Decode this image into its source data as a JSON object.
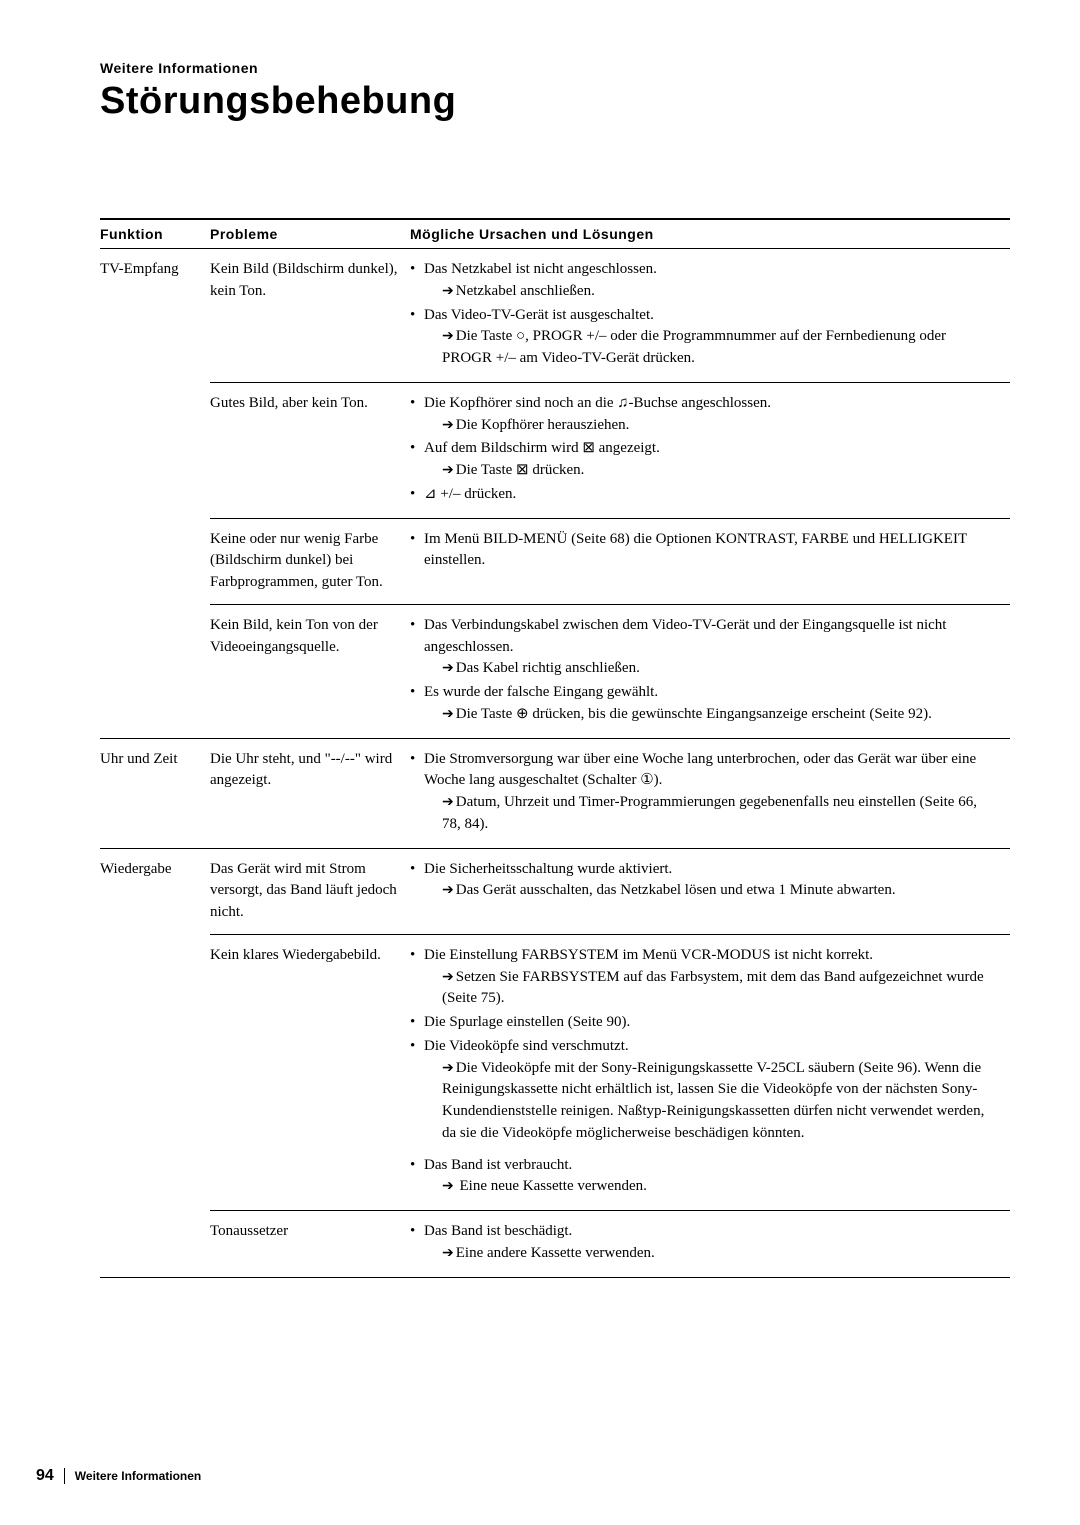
{
  "section_label": "Weitere Informationen",
  "page_title": "Störungsbehebung",
  "headers": {
    "c1": "Funktion",
    "c2": "Probleme",
    "c3": "Mögliche Ursachen und Lösungen"
  },
  "rows": [
    {
      "func": "TV-Empfang",
      "prob": "Kein Bild (Bildschirm dunkel), kein Ton.",
      "sol": [
        {
          "t": "Das Netzkabel ist nicht angeschlossen.",
          "actions": [
            "Netzkabel anschließen."
          ]
        },
        {
          "t": "Das Video-TV-Gerät ist ausgeschaltet.",
          "actions": [
            "Die Taste ○, PROGR +/– oder die Programmnummer auf der Fernbedienung oder PROGR +/– am Video-TV-Gerät drücken."
          ]
        }
      ]
    },
    {
      "func": "",
      "prob": "Gutes Bild, aber kein Ton.",
      "sol": [
        {
          "t": "Die Kopfhörer sind noch an die ♫-Buchse angeschlossen.",
          "actions": [
            "Die Kopfhörer herausziehen."
          ]
        },
        {
          "t": "Auf dem Bildschirm wird ⊠ angezeigt.",
          "actions": [
            "Die Taste ⊠ drücken."
          ]
        },
        {
          "t": "⊿ +/– drücken."
        }
      ]
    },
    {
      "func": "",
      "prob": "Keine oder nur wenig Farbe (Bildschirm dunkel) bei Farbprogrammen, guter Ton.",
      "sol": [
        {
          "t": "Im Menü BILD-MENÜ (Seite 68) die Optionen KONTRAST, FARBE und HELLIGKEIT einstellen."
        }
      ]
    },
    {
      "func": "",
      "func_border": true,
      "prob": "Kein Bild, kein Ton von der Videoeingangsquelle.",
      "sol": [
        {
          "t": "Das Verbindungskabel zwischen dem Video-TV-Gerät und der Eingangsquelle ist nicht angeschlossen.",
          "actions": [
            "Das Kabel richtig anschließen."
          ]
        },
        {
          "t": "Es wurde der falsche Eingang gewählt.",
          "actions": [
            "Die Taste ⊕ drücken, bis die gewünschte Eingangsanzeige erscheint (Seite 92)."
          ]
        }
      ]
    },
    {
      "func": "Uhr und Zeit",
      "func_border": true,
      "prob": "Die Uhr steht, und \"--/--\" wird angezeigt.",
      "sol": [
        {
          "t": "Die Stromversorgung war über eine Woche lang unterbrochen, oder das Gerät war über eine Woche lang ausgeschaltet (Schalter ①).",
          "actions": [
            "Datum, Uhrzeit und Timer-Programmierungen gegebenenfalls neu einstellen (Seite 66, 78, 84)."
          ]
        }
      ]
    },
    {
      "func": "Wiedergabe",
      "prob": "Das Gerät wird mit Strom versorgt, das Band läuft jedoch nicht.",
      "sol": [
        {
          "t": "Die Sicherheitsschaltung wurde aktiviert.",
          "actions": [
            "Das Gerät ausschalten, das Netzkabel lösen und etwa 1 Minute abwarten."
          ]
        }
      ]
    },
    {
      "func": "",
      "prob": "Kein klares Wiedergabebild.",
      "sol": [
        {
          "t": "Die Einstellung FARBSYSTEM im Menü VCR-MODUS ist nicht korrekt.",
          "actions": [
            "Setzen Sie FARBSYSTEM auf das Farbsystem, mit dem das Band aufgezeichnet wurde (Seite 75)."
          ]
        },
        {
          "t": "Die Spurlage einstellen (Seite 90)."
        },
        {
          "t": "Die Videoköpfe sind verschmutzt.",
          "actions": [
            "Die Videoköpfe mit der Sony-Reinigungskassette V-25CL säubern (Seite 96). Wenn  die Reinigungskassette nicht erhältlich ist, lassen Sie die Videoköpfe von der nächsten Sony-Kundendienststelle reinigen. Naßtyp-Reinigungskassetten dürfen nicht verwendet werden, da sie die Videoköpfe möglicherweise beschädigen könnten."
          ]
        },
        {
          "t": "Das Band ist verbraucht.",
          "gap": true,
          "actions_arrow_gap": [
            " Eine neue Kassette verwenden."
          ]
        }
      ]
    },
    {
      "func": "",
      "func_border": true,
      "prob": "Tonaussetzer",
      "sol": [
        {
          "t": "Das Band ist beschädigt.",
          "actions": [
            "Eine andere Kassette verwenden."
          ]
        }
      ]
    }
  ],
  "footer": {
    "page_num": "94",
    "label": "Weitere Informationen"
  }
}
